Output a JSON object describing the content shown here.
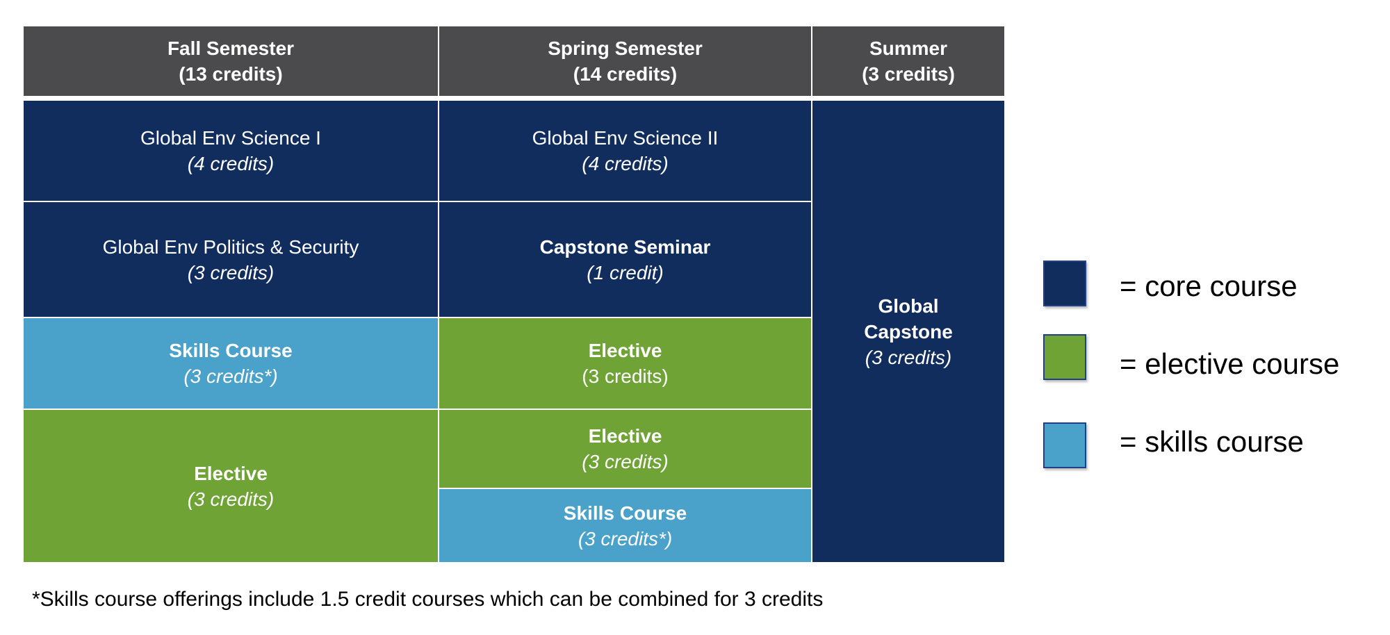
{
  "headers": [
    {
      "title": "Fall Semester",
      "credits": "(13 credits)"
    },
    {
      "title": "Spring Semester",
      "credits": "(14 credits)"
    },
    {
      "title": "Summer",
      "credits": "(3 credits)"
    }
  ],
  "fall": [
    {
      "name": "Global Env Science I",
      "credits": "(4 credits)",
      "type": "core"
    },
    {
      "name": "Global Env Politics & Security",
      "credits": "(3 credits)",
      "type": "core"
    },
    {
      "name": "Skills Course",
      "credits": "(3 credits*)",
      "type": "skills"
    },
    {
      "name": "Elective",
      "credits": "(3 credits)",
      "type": "elective"
    }
  ],
  "spring": [
    {
      "name": "Global Env Science II",
      "credits": "(4 credits)",
      "type": "core"
    },
    {
      "name": "Capstone Seminar",
      "credits": "(1 credit)",
      "type": "core"
    },
    {
      "name": "Elective",
      "credits": "(3 credits)",
      "type": "elective"
    },
    {
      "name": "Elective",
      "credits": "(3 credits)",
      "type": "elective"
    },
    {
      "name": "Skills Course",
      "credits": "(3 credits*)",
      "type": "skills"
    }
  ],
  "summer": [
    {
      "name_line1": "Global",
      "name_line2": "Capstone",
      "credits": "(3 credits)",
      "type": "core"
    }
  ],
  "legend": [
    {
      "label": "= core course",
      "color": "#112d5e"
    },
    {
      "label": "= elective course",
      "color": "#70a335"
    },
    {
      "label": "= skills course",
      "color": "#4aa1c9"
    }
  ],
  "footnote": "*Skills course offerings include 1.5 credit courses which can be combined for 3 credits"
}
